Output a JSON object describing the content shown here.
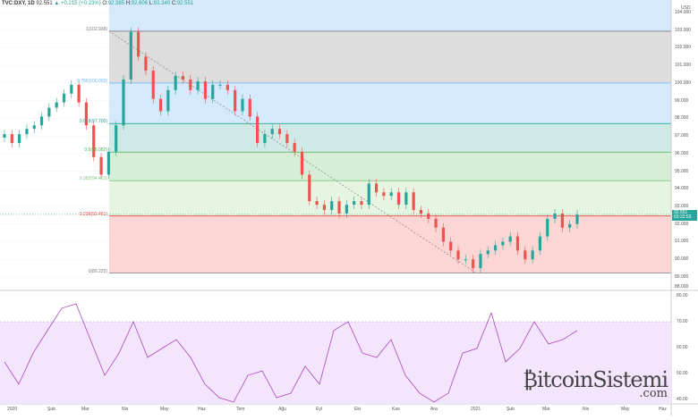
{
  "header": {
    "symbol": "TVC:DXY, 1D",
    "last": "92.551",
    "change": "▲ +0.215 (+0.23%)",
    "open_label": "O:",
    "open": "92.385",
    "high_label": "H:",
    "high": "92.606",
    "low_label": "L:",
    "low": "92.340",
    "close_label": "C:",
    "close": "92.551"
  },
  "price_axis": {
    "currency": "USD",
    "ticks": [
      "104.000",
      "103.000",
      "102.000",
      "101.000",
      "100.000",
      "99.000",
      "98.000",
      "97.000",
      "96.000",
      "95.000",
      "94.000",
      "93.000",
      "92.000",
      "91.000",
      "90.000",
      "89.000",
      "88.000"
    ],
    "current_price": "92.551",
    "countdown": "03:22:53"
  },
  "rsi_axis": {
    "ticks": [
      "80.00",
      "70.00",
      "60.00",
      "50.00",
      "40.00"
    ]
  },
  "time_axis": [
    "2020",
    "Şub",
    "Mar",
    "Nis",
    "May",
    "Haz",
    "Tem",
    "Ağu",
    "Eyl",
    "Eki",
    "Kas",
    "Ara",
    "2021",
    "Şub",
    "Mar",
    "Nis",
    "May",
    "Haz"
  ],
  "fib_levels": [
    {
      "label": "1(102.938)",
      "price": 102.938,
      "color": "#787b86"
    },
    {
      "label": "0.786(100.003)",
      "price": 100.003,
      "color": "#64b5f6"
    },
    {
      "label": "0.618(97.700)",
      "price": 97.7,
      "color": "#26a69a"
    },
    {
      "label": "0.5(96.082)",
      "price": 96.082,
      "color": "#4caf50"
    },
    {
      "label": "0.382(94.463)",
      "price": 94.463,
      "color": "#81c784"
    },
    {
      "label": "0.236(92.461)",
      "price": 92.461,
      "color": "#f44336"
    },
    {
      "label": "0(89.225)",
      "price": 89.225,
      "color": "#787b86"
    }
  ],
  "colors": {
    "up": "#26a69a",
    "down": "#ef5350",
    "rsi": "#ab47bc",
    "rsi_band": "#f3e5fd"
  },
  "chart_data": {
    "type": "candlestick",
    "closes": [
      97.1,
      96.6,
      97.1,
      97.4,
      97.6,
      98.1,
      98.6,
      98.9,
      99.4,
      99.9,
      98.9,
      97.6,
      95.8,
      94.8,
      96.1,
      97.6,
      100.2,
      102.9,
      101.5,
      100.7,
      99.1,
      98.4,
      99.6,
      100.4,
      100.2,
      99.6,
      100.1,
      99.1,
      99.9,
      99.9,
      99.6,
      98.4,
      99.1,
      98.1,
      96.6,
      97.1,
      97.4,
      97.1,
      96.6,
      96.1,
      94.8,
      93.3,
      93.1,
      92.8,
      93.3,
      92.6,
      93.1,
      93.3,
      93.1,
      94.3,
      93.8,
      93.6,
      93.8,
      93.1,
      93.8,
      92.8,
      92.6,
      92.3,
      91.8,
      91.0,
      90.5,
      90.0,
      90.0,
      89.5,
      90.3,
      90.5,
      90.8,
      91.0,
      91.3,
      90.5,
      90.0,
      90.5,
      91.3,
      92.3,
      92.6,
      91.8,
      92.0,
      92.55
    ],
    "rsi": [
      54.5,
      45.9,
      57.9,
      66.6,
      75.2,
      76.9,
      63.1,
      49.3,
      57.9,
      70,
      56.2,
      59.7,
      63.1,
      56.2,
      45.9,
      40.7,
      39,
      49.3,
      51,
      40.7,
      42.4,
      52.8,
      45.9,
      66.6,
      70,
      57.9,
      56.2,
      63.1,
      49.3,
      42.4,
      39,
      42.4,
      57.9,
      59.7,
      73.4,
      54.5,
      59.7,
      70,
      61.4,
      63.1,
      66.6
    ]
  }
}
